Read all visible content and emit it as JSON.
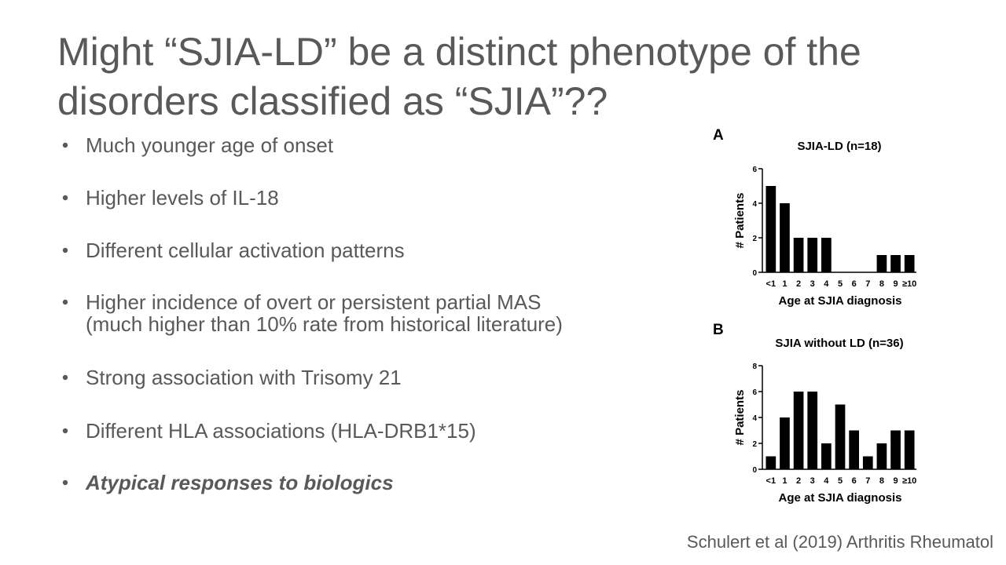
{
  "slide": {
    "title": {
      "lines": [
        "Might “SJIA-LD” be a distinct phenotype of the",
        "disorders classified as “SJIA”??"
      ]
    },
    "bullets": [
      {
        "lines": [
          "Much younger age of onset"
        ]
      },
      {
        "lines": [
          "Higher levels of IL-18"
        ]
      },
      {
        "lines": [
          "Different cellular activation patterns"
        ]
      },
      {
        "lines": [
          "Higher incidence of overt or persistent partial MAS",
          "(much higher than 10% rate from historical literature)"
        ]
      },
      {
        "lines": [
          "Strong association with Trisomy 21"
        ]
      },
      {
        "lines": [
          "Different HLA associations (HLA-DRB1*15)"
        ]
      },
      {
        "lines": [
          "Atypical responses to biologics"
        ],
        "emphasis": true
      }
    ],
    "citation": "Schulert et al (2019) Arthritis Rheumatol",
    "charts": [
      {
        "type": "bar",
        "panel": "A",
        "title": "SJIA-LD (n=18)",
        "x_label": "Age at SJIA diagnosis",
        "y_label": "# Patients",
        "categories": [
          "<1",
          "1",
          "2",
          "3",
          "4",
          "5",
          "6",
          "7",
          "8",
          "9",
          "≥10"
        ],
        "values": [
          5,
          4,
          2,
          2,
          2,
          0,
          0,
          0,
          1,
          1,
          1
        ],
        "color": "#000000",
        "ylim": [
          0,
          6
        ],
        "yticks": [
          0,
          2,
          4,
          6
        ]
      },
      {
        "type": "bar",
        "panel": "B",
        "title": "SJIA without LD (n=36)",
        "x_label": "Age at SJIA diagnosis",
        "y_label": "# Patients",
        "categories": [
          "<1",
          "1",
          "2",
          "3",
          "4",
          "5",
          "6",
          "7",
          "8",
          "9",
          "≥10"
        ],
        "values": [
          1,
          4,
          6,
          6,
          2,
          5,
          3,
          1,
          2,
          3,
          3
        ],
        "color": "#000000",
        "ylim": [
          0,
          8
        ],
        "yticks": [
          0,
          2,
          4,
          6,
          8
        ]
      }
    ]
  }
}
